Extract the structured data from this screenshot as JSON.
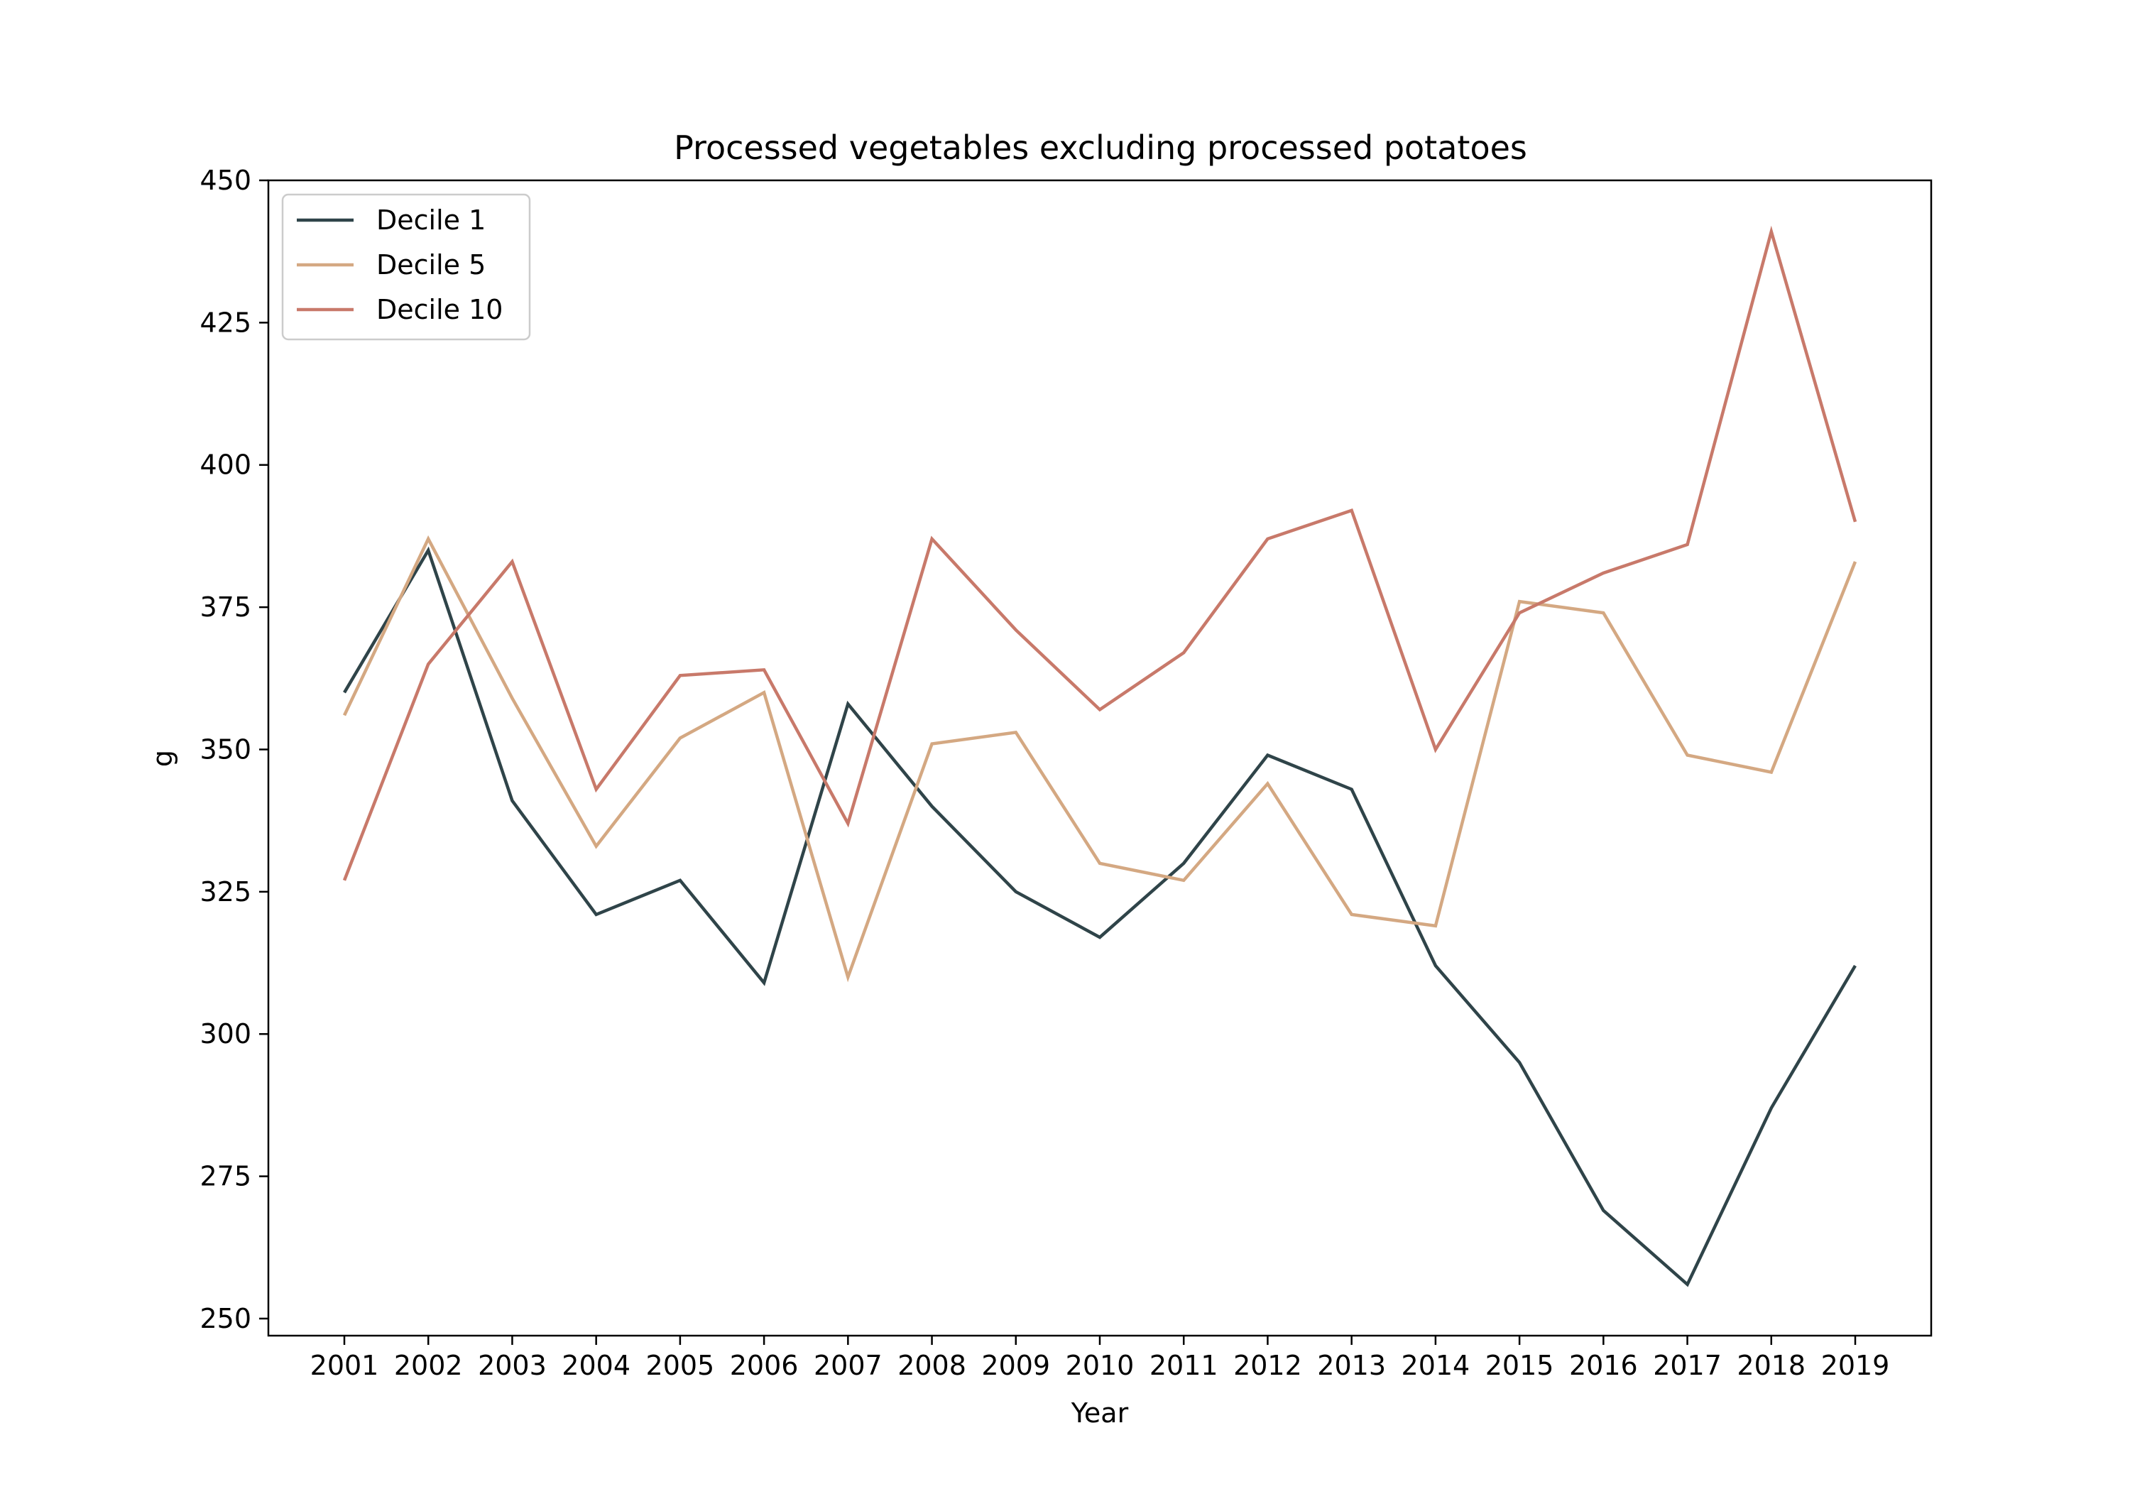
{
  "chart_data": {
    "type": "line",
    "title": "Processed vegetables excluding processed potatoes",
    "xlabel": "Year",
    "ylabel": "g",
    "x": [
      "2001",
      "2002",
      "2003",
      "2004",
      "2005",
      "2006",
      "2007",
      "2008",
      "2009",
      "2010",
      "2011",
      "2012",
      "2013",
      "2014",
      "2015",
      "2016",
      "2017",
      "2018",
      "2019"
    ],
    "yticks": [
      250,
      275,
      300,
      325,
      350,
      375,
      400,
      425,
      450
    ],
    "ylim": [
      247,
      450
    ],
    "grid": false,
    "legend_position": "upper-left",
    "series": [
      {
        "name": "Decile 1",
        "color": "#2f4449",
        "values": [
          360,
          385,
          341,
          321,
          327,
          309,
          358,
          340,
          325,
          317,
          330,
          349,
          343,
          312,
          295,
          269,
          256,
          287,
          312
        ]
      },
      {
        "name": "Decile 5",
        "color": "#d4a882",
        "values": [
          356,
          387,
          359,
          333,
          352,
          360,
          310,
          351,
          353,
          330,
          327,
          344,
          321,
          319,
          376,
          374,
          349,
          346,
          383
        ]
      },
      {
        "name": "Decile 10",
        "color": "#c8796a",
        "values": [
          327,
          365,
          383,
          343,
          363,
          364,
          337,
          387,
          371,
          357,
          367,
          387,
          392,
          350,
          374,
          381,
          386,
          441,
          390
        ]
      }
    ]
  }
}
